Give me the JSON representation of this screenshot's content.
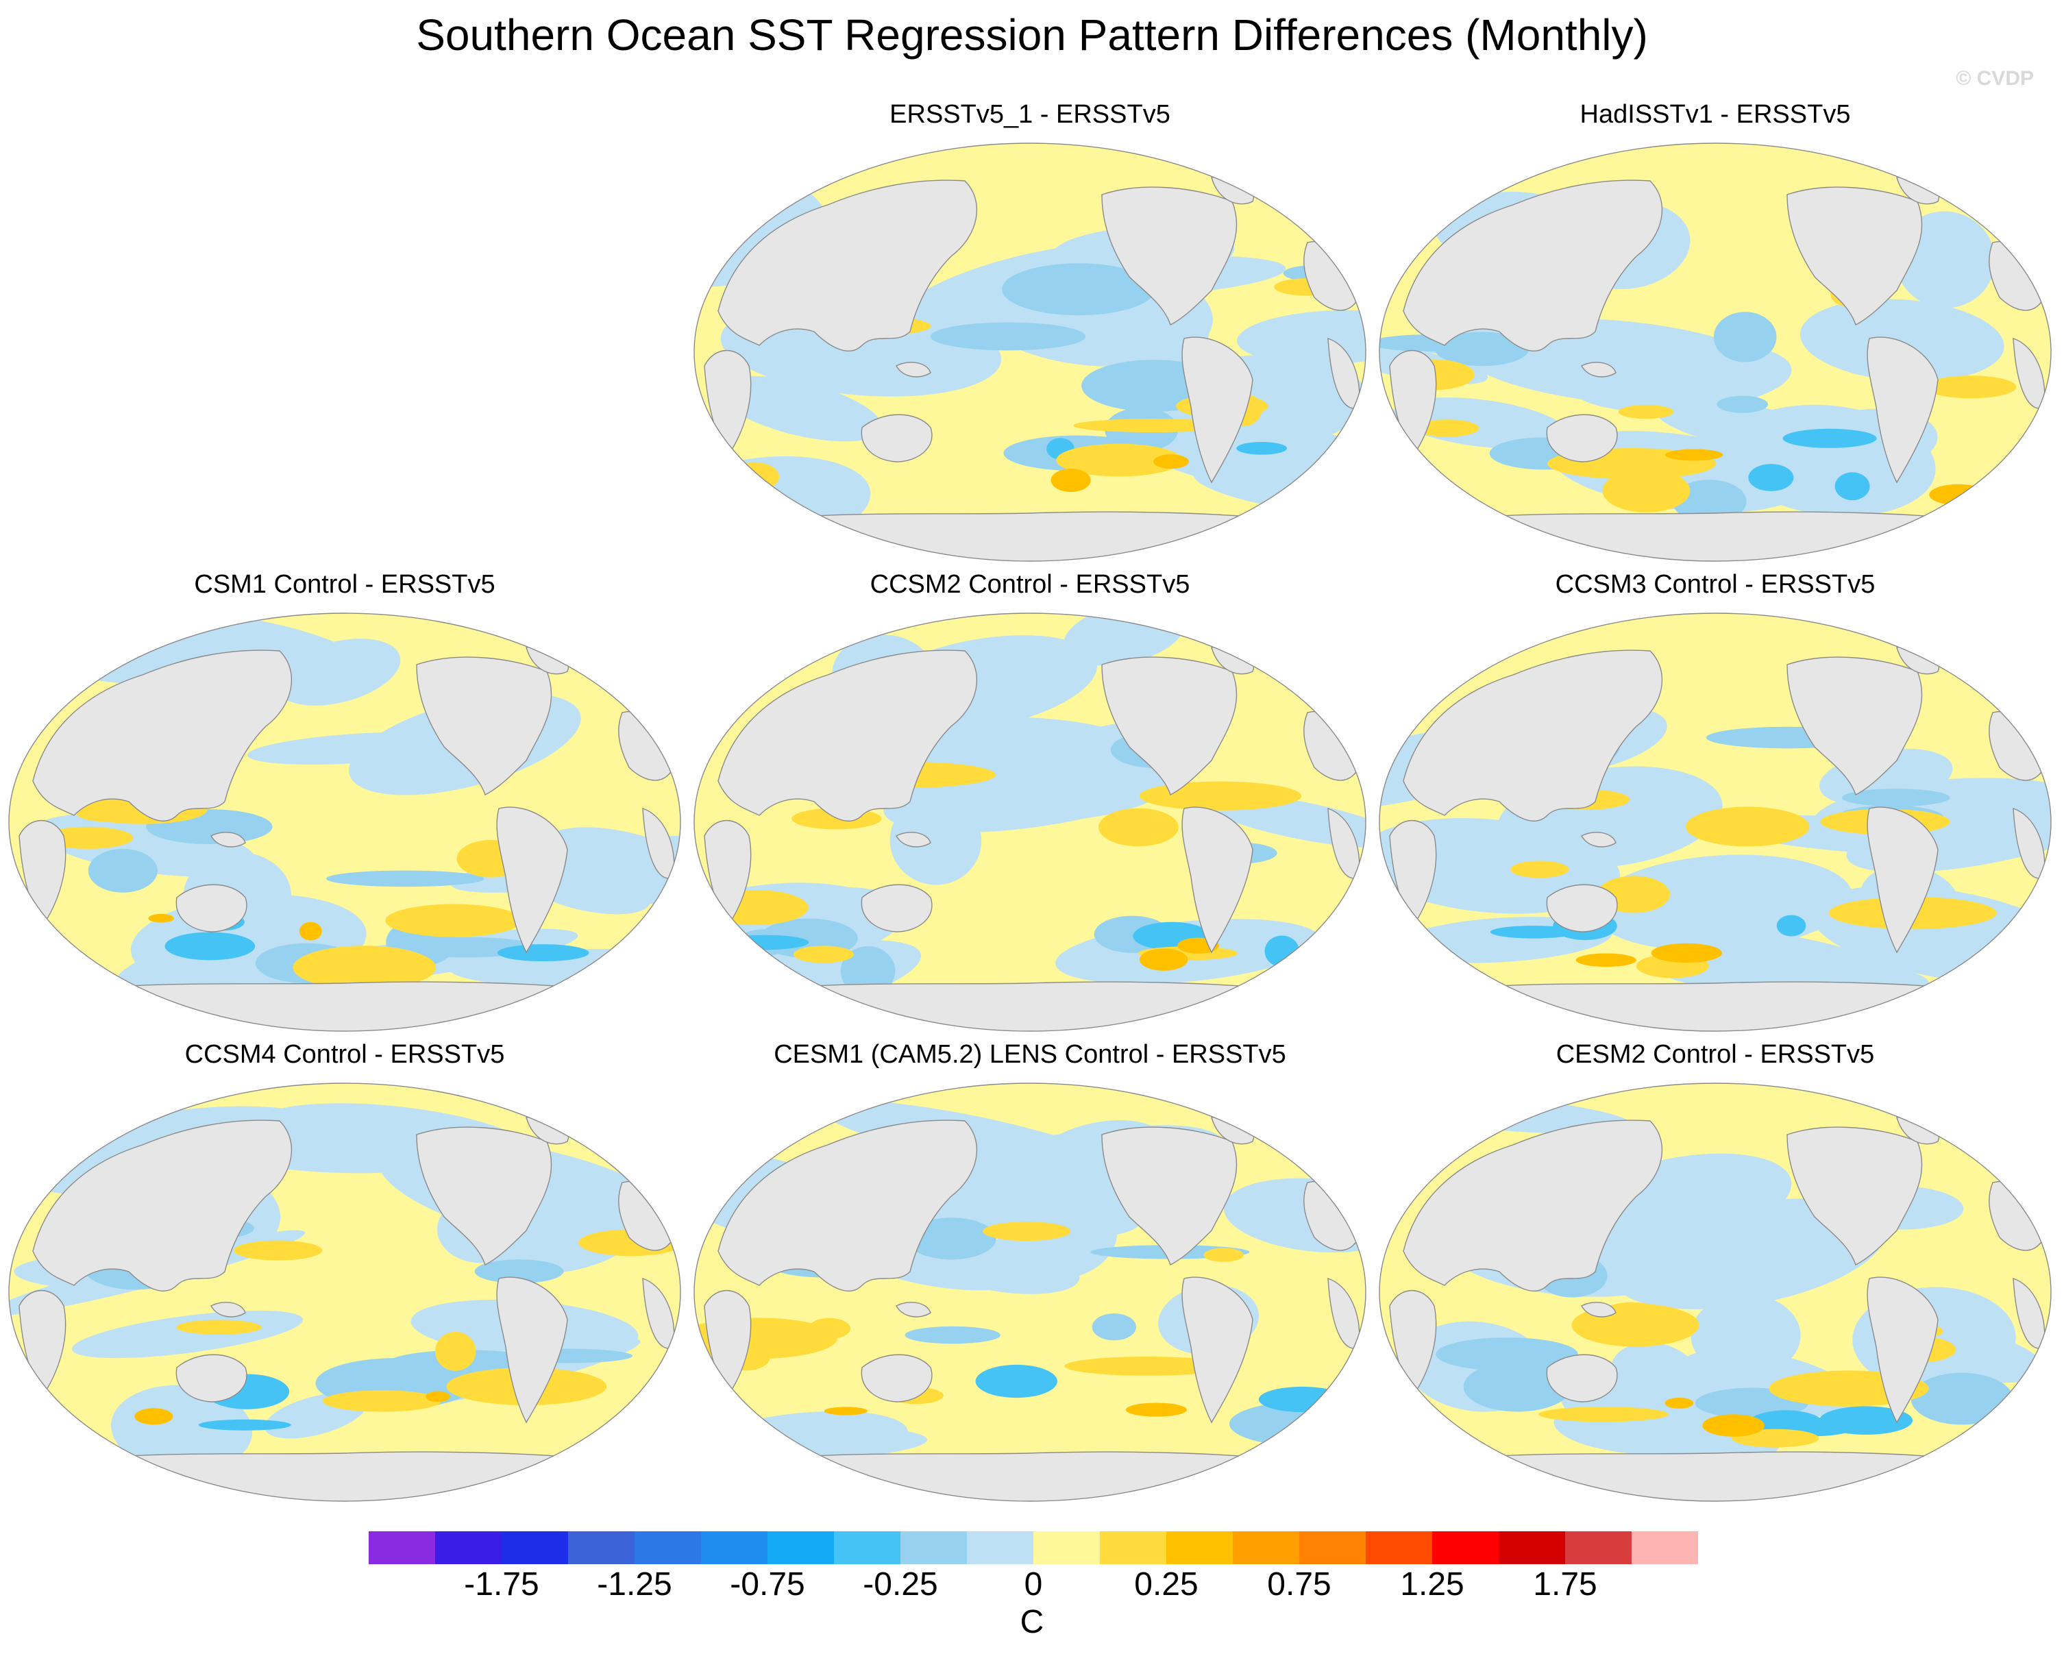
{
  "title": "Southern Ocean SST Regression Pattern Differences (Monthly)",
  "credit": "© CVDP",
  "colors": {
    "land": "#e6e6e6",
    "coast": "#8a8a8a",
    "ocean_neutral": "#d9d9d9"
  },
  "panels": [
    {
      "title": "ERSSTv5_1 - ERSSTv5"
    },
    {
      "title": "HadISSTv1 - ERSSTv5"
    },
    {
      "title": "CSM1 Control - ERSSTv5"
    },
    {
      "title": "CCSM2 Control - ERSSTv5"
    },
    {
      "title": "CCSM3 Control - ERSSTv5"
    },
    {
      "title": "CCSM4 Control - ERSSTv5"
    },
    {
      "title": "CESM1 (CAM5.2) LENS Control - ERSSTv5"
    },
    {
      "title": "CESM2 Control - ERSSTv5"
    }
  ],
  "colorbar": {
    "unit": "C",
    "colors": [
      "#8a2be2",
      "#3a1ee8",
      "#1e2ee8",
      "#3c64d8",
      "#2c78e8",
      "#1e8cf0",
      "#14aaf5",
      "#46c3f5",
      "#96d2f0",
      "#bee0f5",
      "#fff89a",
      "#ffdc3c",
      "#ffc000",
      "#ffa000",
      "#ff8200",
      "#ff4b00",
      "#ff0000",
      "#d20000",
      "#d83c3c",
      "#ffb4b4"
    ],
    "labels": [
      "-1.75",
      "-1.25",
      "-0.75",
      "-0.25",
      "0",
      "0.25",
      "0.75",
      "1.25",
      "1.75"
    ]
  }
}
